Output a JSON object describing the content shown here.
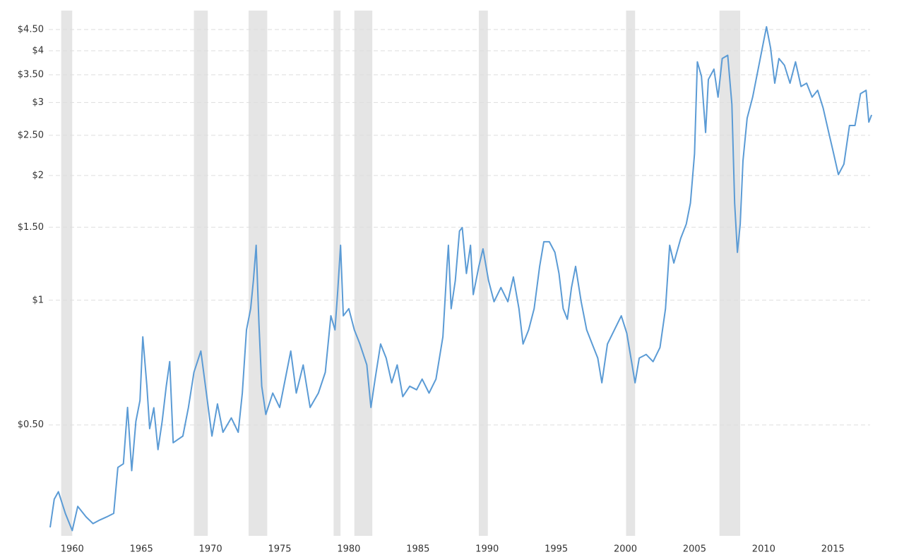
{
  "chart_data": {
    "type": "line",
    "log_y": true,
    "grid": true,
    "color": "#5b9bd5",
    "shade_color": "#e5e5e5",
    "xlim": [
      1958.3,
      2018
    ],
    "xticks": [
      1960,
      1965,
      1970,
      1975,
      1980,
      1985,
      1990,
      1995,
      2000,
      2005,
      2010,
      2015
    ],
    "ylim": [
      0.27,
      5.0
    ],
    "yticks": [
      {
        "value": 0.5,
        "label": "$0.50"
      },
      {
        "value": 1,
        "label": "$1"
      },
      {
        "value": 1.5,
        "label": "$1.50"
      },
      {
        "value": 2,
        "label": "$2"
      },
      {
        "value": 2.5,
        "label": "$2.50"
      },
      {
        "value": 3,
        "label": "$3"
      },
      {
        "value": 3.5,
        "label": "$3.50"
      },
      {
        "value": 4,
        "label": "$4"
      },
      {
        "value": 4.5,
        "label": "$4.50"
      }
    ],
    "shaded_ranges": [
      [
        1959.2,
        1960.0
      ],
      [
        1968.8,
        1969.8
      ],
      [
        1972.75,
        1974.1
      ],
      [
        1978.9,
        1979.4
      ],
      [
        1980.4,
        1981.7
      ],
      [
        1989.4,
        1990.05
      ],
      [
        2000.05,
        2000.7
      ],
      [
        2006.8,
        2008.3
      ]
    ],
    "x": [
      1958.4,
      1958.7,
      1959.0,
      1959.5,
      1960.0,
      1960.4,
      1961.0,
      1961.5,
      1962.0,
      1962.5,
      1963.0,
      1963.3,
      1963.7,
      1964.0,
      1964.3,
      1964.6,
      1964.9,
      1965.1,
      1965.4,
      1965.6,
      1965.9,
      1966.2,
      1966.5,
      1966.8,
      1967.05,
      1967.3,
      1968.0,
      1968.4,
      1968.8,
      1969.3,
      1969.7,
      1970.1,
      1970.5,
      1970.9,
      1971.5,
      1972.0,
      1972.3,
      1972.6,
      1972.9,
      1973.1,
      1973.3,
      1973.5,
      1973.7,
      1974.0,
      1974.5,
      1975.0,
      1975.5,
      1975.8,
      1976.2,
      1976.7,
      1977.2,
      1977.8,
      1978.3,
      1978.7,
      1979.0,
      1979.2,
      1979.4,
      1979.6,
      1980.0,
      1980.4,
      1980.8,
      1981.3,
      1981.6,
      1981.9,
      1982.3,
      1982.7,
      1983.1,
      1983.5,
      1983.9,
      1984.4,
      1984.9,
      1985.3,
      1985.8,
      1986.3,
      1986.8,
      1987.1,
      1987.2,
      1987.4,
      1987.7,
      1988.0,
      1988.2,
      1988.5,
      1988.8,
      1989.0,
      1989.4,
      1989.7,
      1990.1,
      1990.5,
      1991.0,
      1991.5,
      1991.9,
      1992.3,
      1992.6,
      1993.0,
      1993.4,
      1993.8,
      1994.1,
      1994.5,
      1994.9,
      1995.2,
      1995.5,
      1995.8,
      1996.1,
      1996.4,
      1996.8,
      1997.2,
      1997.6,
      1998.0,
      1998.3,
      1998.7,
      1999.2,
      1999.7,
      2000.1,
      2000.4,
      2000.7,
      2001.0,
      2001.5,
      2002.0,
      2002.5,
      2002.9,
      2003.2,
      2003.5,
      2004.0,
      2004.4,
      2004.7,
      2005.0,
      2005.2,
      2005.5,
      2005.8,
      2006.0,
      2006.4,
      2006.7,
      2007.0,
      2007.4,
      2007.7,
      2007.9,
      2008.1,
      2008.3,
      2008.5,
      2008.8,
      2009.2,
      2009.6,
      2010.0,
      2010.2,
      2010.5,
      2010.8,
      2011.1,
      2011.5,
      2011.9,
      2012.3,
      2012.7,
      2013.1,
      2013.5,
      2013.9,
      2014.3,
      2014.7,
      2015.0,
      2015.4,
      2015.8,
      2016.2,
      2016.6,
      2017.0,
      2017.4,
      2017.6,
      2017.8
    ],
    "values": [
      0.283,
      0.331,
      0.345,
      0.306,
      0.278,
      0.318,
      0.3,
      0.289,
      0.295,
      0.3,
      0.306,
      0.395,
      0.403,
      0.551,
      0.388,
      0.51,
      0.573,
      0.816,
      0.62,
      0.49,
      0.55,
      0.436,
      0.51,
      0.62,
      0.711,
      0.453,
      0.47,
      0.551,
      0.67,
      0.754,
      0.597,
      0.47,
      0.562,
      0.48,
      0.52,
      0.48,
      0.597,
      0.848,
      0.954,
      1.116,
      1.357,
      0.882,
      0.62,
      0.53,
      0.597,
      0.551,
      0.67,
      0.754,
      0.597,
      0.698,
      0.551,
      0.597,
      0.67,
      0.917,
      0.848,
      1.052,
      1.357,
      0.917,
      0.954,
      0.848,
      0.784,
      0.698,
      0.551,
      0.645,
      0.784,
      0.725,
      0.632,
      0.698,
      0.585,
      0.62,
      0.608,
      0.645,
      0.597,
      0.645,
      0.816,
      1.207,
      1.357,
      0.954,
      1.116,
      1.468,
      1.497,
      1.16,
      1.357,
      1.032,
      1.207,
      1.33,
      1.116,
      0.992,
      1.073,
      0.992,
      1.138,
      0.954,
      0.784,
      0.848,
      0.954,
      1.207,
      1.384,
      1.384,
      1.305,
      1.16,
      0.954,
      0.9,
      1.073,
      1.207,
      0.992,
      0.848,
      0.784,
      0.725,
      0.632,
      0.784,
      0.848,
      0.917,
      0.832,
      0.725,
      0.632,
      0.725,
      0.74,
      0.711,
      0.769,
      0.954,
      1.357,
      1.23,
      1.411,
      1.527,
      1.716,
      2.257,
      3.76,
      3.47,
      2.54,
      3.41,
      3.61,
      3.09,
      3.83,
      3.9,
      2.97,
      1.716,
      1.305,
      1.527,
      2.17,
      2.75,
      3.09,
      3.61,
      4.23,
      4.57,
      4.06,
      3.34,
      3.83,
      3.69,
      3.34,
      3.76,
      3.28,
      3.34,
      3.09,
      3.21,
      2.91,
      2.54,
      2.3,
      2.01,
      2.13,
      2.64,
      2.64,
      3.15,
      3.21,
      2.69,
      2.8
    ]
  }
}
